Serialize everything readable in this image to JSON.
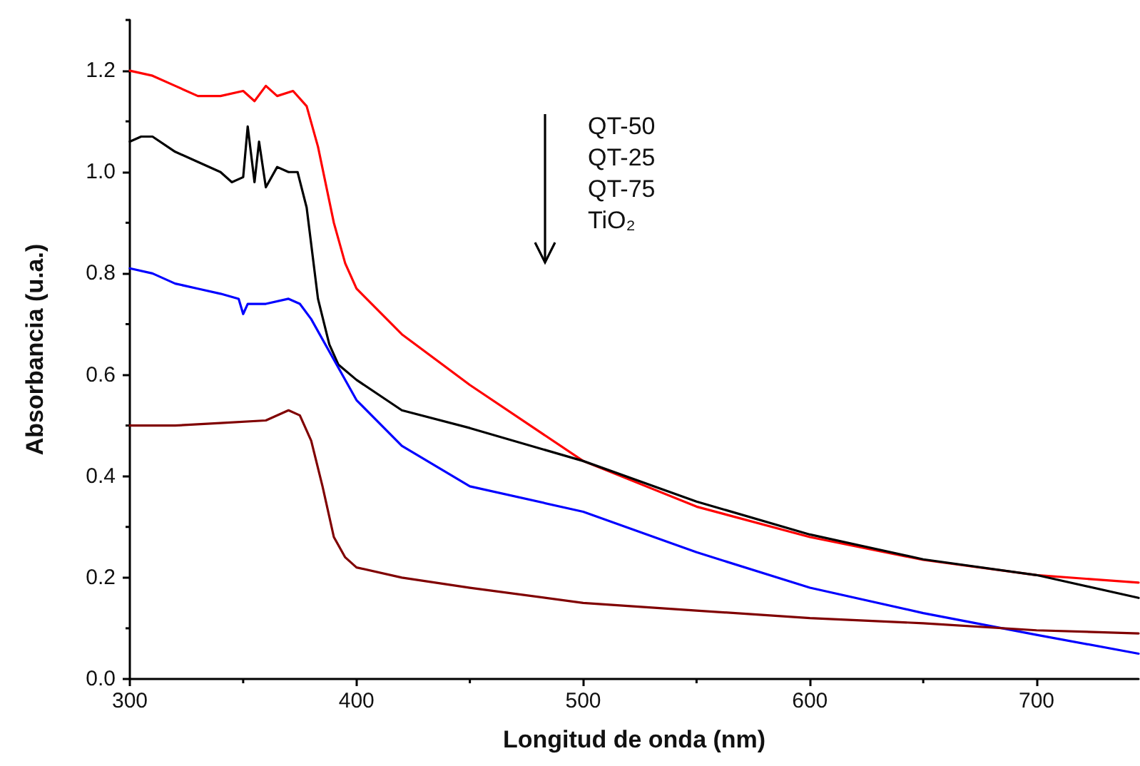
{
  "chart_data": {
    "type": "line",
    "xlabel": "Longitud de onda (nm)",
    "ylabel": "Absorbancia (u.a.)",
    "xlim": [
      300,
      745
    ],
    "xticks": [
      300,
      400,
      500,
      600,
      700
    ],
    "ylim": [
      0,
      1.3
    ],
    "yticks": [
      {
        "value": 0,
        "label": "0.0"
      },
      0.2,
      0.4,
      0.6,
      0.8,
      {
        "value": 1,
        "label": "1.0"
      },
      1.2
    ],
    "marker": "none",
    "line_style": "solid",
    "grid": false,
    "annotations": [
      "QT-50",
      "QT-25",
      "QT-75",
      "TiO₂"
    ],
    "series": [
      {
        "color": "#ff0000",
        "x": [
          300,
          310,
          320,
          330,
          340,
          350,
          355,
          360,
          365,
          372,
          378,
          383,
          390,
          395,
          400,
          420,
          450,
          500,
          550,
          600,
          650,
          700,
          745
        ],
        "values": [
          1.2,
          1.19,
          1.17,
          1.15,
          1.15,
          1.16,
          1.14,
          1.17,
          1.15,
          1.16,
          1.13,
          1.05,
          0.9,
          0.82,
          0.77,
          0.68,
          0.58,
          0.43,
          0.34,
          0.28,
          0.235,
          0.205,
          0.19
        ]
      },
      {
        "color": "#000000",
        "x": [
          300,
          305,
          310,
          320,
          330,
          340,
          345,
          350,
          352,
          355,
          357,
          360,
          365,
          370,
          374,
          378,
          383,
          388,
          392,
          400,
          420,
          450,
          500,
          550,
          600,
          650,
          700,
          745
        ],
        "values": [
          1.06,
          1.07,
          1.07,
          1.04,
          1.02,
          1.0,
          0.98,
          0.99,
          1.09,
          0.98,
          1.06,
          0.97,
          1.01,
          1.0,
          1.0,
          0.93,
          0.75,
          0.66,
          0.62,
          0.59,
          0.53,
          0.495,
          0.43,
          0.35,
          0.285,
          0.236,
          0.205,
          0.16
        ]
      },
      {
        "color": "#0000ff",
        "x": [
          300,
          310,
          320,
          330,
          340,
          348,
          350,
          352,
          360,
          370,
          375,
          380,
          390,
          400,
          420,
          450,
          500,
          550,
          600,
          650,
          700,
          745
        ],
        "values": [
          0.81,
          0.8,
          0.78,
          0.77,
          0.76,
          0.75,
          0.72,
          0.74,
          0.74,
          0.75,
          0.74,
          0.71,
          0.63,
          0.55,
          0.46,
          0.38,
          0.33,
          0.25,
          0.18,
          0.13,
          0.087,
          0.05
        ]
      },
      {
        "color": "#800000",
        "x": [
          300,
          320,
          340,
          360,
          370,
          375,
          380,
          385,
          390,
          395,
          400,
          420,
          450,
          500,
          550,
          600,
          650,
          700,
          745
        ],
        "values": [
          0.5,
          0.5,
          0.505,
          0.51,
          0.53,
          0.52,
          0.47,
          0.38,
          0.28,
          0.24,
          0.22,
          0.2,
          0.18,
          0.15,
          0.135,
          0.12,
          0.11,
          0.096,
          0.09
        ]
      }
    ]
  }
}
